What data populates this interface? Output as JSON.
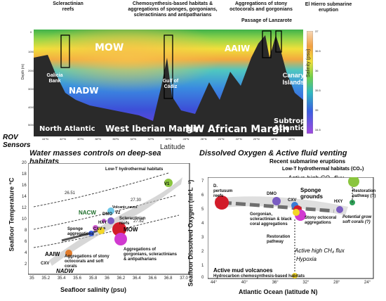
{
  "top_section": {
    "habitat_labels": [
      "Scleractinian reefs",
      "Chemosynthesis-based habitats & aggregations of sponges, gorgonians, scleractinians and antipatharians",
      "Aggregations of stony octocorals and gorgonians",
      "Passage of Lanzarote",
      "El Hierro submarine eruption"
    ],
    "water_masses": [
      "MOW",
      "NADW",
      "AAIW"
    ],
    "locations": [
      "Galicia Bank",
      "Gulf of Cádiz",
      "Canary Islands"
    ],
    "regions": [
      "North Atlantic",
      "West Iberian Margin",
      "NW African Margin",
      "Subtropical Atlantic"
    ],
    "y_axis_label": "Depth (m)",
    "depth_ticks": [
      "0",
      "1000",
      "2000",
      "3000",
      "4000",
      "5000"
    ],
    "x_axis_label": "Latitude",
    "lat_ticks": [
      "44°N",
      "42°N",
      "40°N",
      "38°N",
      "36°N",
      "34°N",
      "32°N",
      "30°N",
      "28°N",
      "26°N",
      "24°N",
      "22°N",
      "20°N",
      "18°N",
      "16°N"
    ],
    "colorbar_label": "Salinity (psu)",
    "colorbar_ticks": [
      "37",
      "36.5",
      "36",
      "35.5",
      "35",
      "34.5"
    ],
    "colors": {
      "mow": "#f5c24a",
      "nadw": "#3e5fd8",
      "aaiw": "#1db3a8",
      "seafloor": "#2a2a2a"
    }
  },
  "rov_label": "ROV Sensors",
  "left_panel": {
    "title": "Water masses controls on deep-sea habitats",
    "y_axis_label": "Seafloor Temperature °C",
    "x_axis_label": "Seafloor salinity (psu)",
    "y_ticks": [
      "20",
      "18",
      "16",
      "14",
      "12",
      "10",
      "8",
      "6",
      "4",
      "2"
    ],
    "x_ticks": [
      "35",
      "35.2",
      "35.4",
      "35.6",
      "35.8",
      "36",
      "36.2",
      "36.4",
      "36.6",
      "36.8",
      "37.0"
    ],
    "density_lines": [
      "26.51",
      "27.30",
      "27.82"
    ],
    "water_masses": [
      "NACW",
      "MOW",
      "AAIW",
      "CXV",
      "NADW"
    ],
    "annotations": [
      "Low-T hydrothermal habitats",
      "V1",
      "Volcanic caves",
      "V2",
      "Scleractinian reefs",
      "Sponge aggregations",
      "DMO",
      "HXY",
      "CXV",
      "Aggregations of stony octocorals and soft corals",
      "Aggregations of gorgonians, scleractinians & antipatharians"
    ]
  },
  "right_panel": {
    "title": "Dissolved Oxygen & Active fluid venting",
    "subtitle": "Recent submarine eruptions",
    "hydro_label": "Low-T hydrothermal habitats (CO₂)",
    "co2_flux": "Active high CO₂ flux",
    "ch4_flux": "Active high CH₄ flux",
    "hypoxia": "Hypoxia",
    "y_axis_label": "Seafloor Dissolved Oxygen (ml·L⁻¹)",
    "x_axis_label": "Atlantic Ocean (latitude N)",
    "y_ticks": [
      "7",
      "6",
      "5",
      "4",
      "3",
      "2",
      "1",
      "0"
    ],
    "x_ticks": [
      "44°",
      "40°",
      "36°",
      "32°",
      "28°",
      "24°"
    ],
    "annotations": [
      "D. pertusum reefs",
      "DMO",
      "CXV",
      "HXY",
      "Sponge grounds",
      "Gorgonian, scleractinian & black coral aggregations",
      "Stony octocoral aggregations",
      "Restoration pathway",
      "Restoration pathway (?)",
      "Potential grow soft corals (?)",
      "Active mud volcanoes",
      "Hydrocarbon chemosynthesis-based habitats"
    ]
  }
}
